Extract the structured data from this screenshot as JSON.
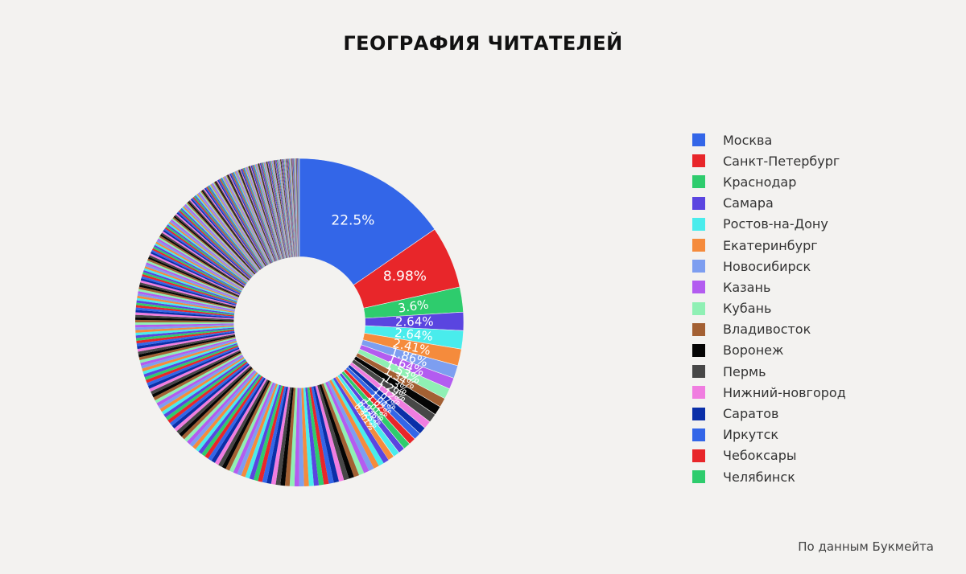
{
  "title": "ГЕОГРАФИЯ ЧИТАТЕЛЕЙ",
  "source": "По данным Букмейта",
  "chart_data": {
    "type": "pie",
    "hole": 0.4,
    "direction": "clockwise",
    "legend_position": "right",
    "slices": [
      {
        "label": "Москва",
        "value": 22.5,
        "text": "22.5%",
        "color": "#3366e8"
      },
      {
        "label": "Санкт-Петербург",
        "value": 8.98,
        "text": "8.98%",
        "color": "#e8262a"
      },
      {
        "label": "Краснодар",
        "value": 3.6,
        "text": "3.6%",
        "color": "#2ecc6d"
      },
      {
        "label": "Самара",
        "value": 2.64,
        "text": "2.64%",
        "color": "#5a45e0"
      },
      {
        "label": "Ростов-на-Дону",
        "value": 2.64,
        "text": "2.64%",
        "color": "#49ecec"
      },
      {
        "label": "Екатеринбург",
        "value": 2.41,
        "text": "2.41%",
        "color": "#f58b3c"
      },
      {
        "label": "Новосибирск",
        "value": 1.86,
        "text": "1.86%",
        "color": "#7d9ef0"
      },
      {
        "label": "Казань",
        "value": 1.64,
        "text": "1.64%",
        "color": "#b35cf0"
      },
      {
        "label": "Кубань",
        "value": 1.53,
        "text": "1.53%",
        "color": "#8ff0b4"
      },
      {
        "label": "Владивосток",
        "value": 1.34,
        "text": "1.34%",
        "color": "#a36033"
      },
      {
        "label": "Воронеж",
        "value": 1.3,
        "text": "1.3%",
        "color": "#050505"
      },
      {
        "label": "Пермь",
        "value": 1.29,
        "text": "1.29%",
        "color": "#474747"
      },
      {
        "label": "Нижний-новгород",
        "value": 1.12,
        "text": "1.12%",
        "color": "#f07de0"
      },
      {
        "label": "Саратов",
        "value": 1.07,
        "text": "1.07%",
        "color": "#0a2fa8"
      },
      {
        "label": "Иркутск",
        "value": 1.04,
        "text": "1.04%",
        "color": "#3366e8"
      },
      {
        "label": "Чебоксары",
        "value": 1.02,
        "text": "1.02%",
        "color": "#e8262a"
      },
      {
        "label": "Челябинск",
        "value": 1.01,
        "text": "1.01%",
        "color": "#2ecc6d"
      },
      {
        "label": "",
        "value": 0.936,
        "text": "0.936%",
        "color": "#5a45e0"
      },
      {
        "label": "",
        "value": 0.925,
        "text": "0.925%",
        "color": "#49ecec"
      },
      {
        "label": "",
        "value": 0.901,
        "text": "0.901%",
        "color": "#f58b3c"
      }
    ],
    "other_slices": {
      "count": 340,
      "first_value": 0.8,
      "last_value": 0.04,
      "palette": [
        "#5a45e0",
        "#49ecec",
        "#f58b3c",
        "#7d9ef0",
        "#b35cf0",
        "#8ff0b4",
        "#a36033",
        "#050505",
        "#474747",
        "#f07de0",
        "#0a2fa8",
        "#3366e8",
        "#e8262a",
        "#2ecc6d"
      ]
    }
  }
}
